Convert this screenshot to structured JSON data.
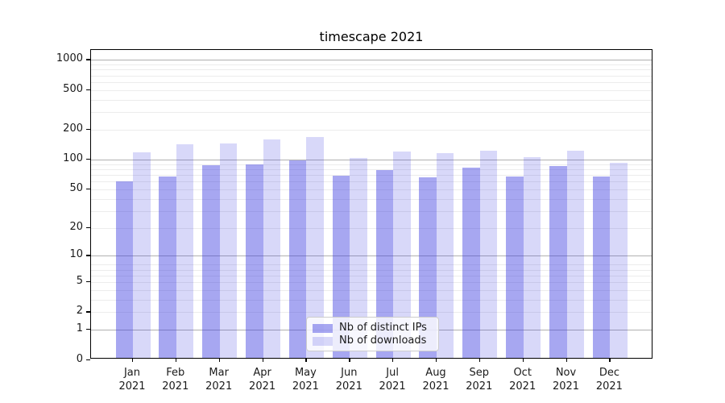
{
  "chart_data": {
    "type": "bar",
    "title": "timescape 2021",
    "categories": [
      "Jan 2021",
      "Feb 2021",
      "Mar 2021",
      "Apr 2021",
      "May 2021",
      "Jun 2021",
      "Jul 2021",
      "Aug 2021",
      "Sep 2021",
      "Oct 2021",
      "Nov 2021",
      "Dec 2021"
    ],
    "months": [
      "Jan",
      "Feb",
      "Mar",
      "Apr",
      "May",
      "Jun",
      "Jul",
      "Aug",
      "Sep",
      "Oct",
      "Nov",
      "Dec"
    ],
    "year_label": "2021",
    "series": [
      {
        "name": "Nb of distinct IPs",
        "color": "rgba(60,60,225,0.45)",
        "color_hex_on_white": "#a8a8f3",
        "values": [
          60,
          67,
          88,
          89,
          98,
          69,
          78,
          66,
          83,
          67,
          86,
          68
        ]
      },
      {
        "name": "Nb of downloads",
        "color": "rgba(60,60,225,0.20)",
        "color_hex_on_white": "#d9d9fa",
        "values": [
          118,
          143,
          146,
          160,
          170,
          104,
          120,
          116,
          123,
          106,
          123,
          92
        ]
      }
    ],
    "yscale": "log1p",
    "ylim": [
      0,
      1300
    ],
    "y_ticks": [
      1000,
      500,
      200,
      100,
      50,
      20,
      10,
      5,
      2,
      1,
      0
    ],
    "grid": {
      "enabled": true,
      "major_values": [
        1,
        10,
        100,
        1000
      ],
      "minor_values": [
        2,
        3,
        4,
        5,
        6,
        7,
        8,
        20,
        30,
        40,
        50,
        60,
        70,
        80,
        90,
        200,
        300,
        400,
        500,
        600,
        700,
        800,
        900
      ]
    },
    "legend": {
      "position": "lower center",
      "items": [
        "Nb of distinct IPs",
        "Nb of downloads"
      ]
    },
    "xlabel": "",
    "ylabel": ""
  },
  "colors": {
    "grid_major": "#b0b0b0",
    "grid_minor": "#ececec",
    "spine": "#000000",
    "text": "#1a1a1a",
    "legend_border": "#cccccc",
    "legend_bg": "rgba(255,255,255,0.8)"
  }
}
